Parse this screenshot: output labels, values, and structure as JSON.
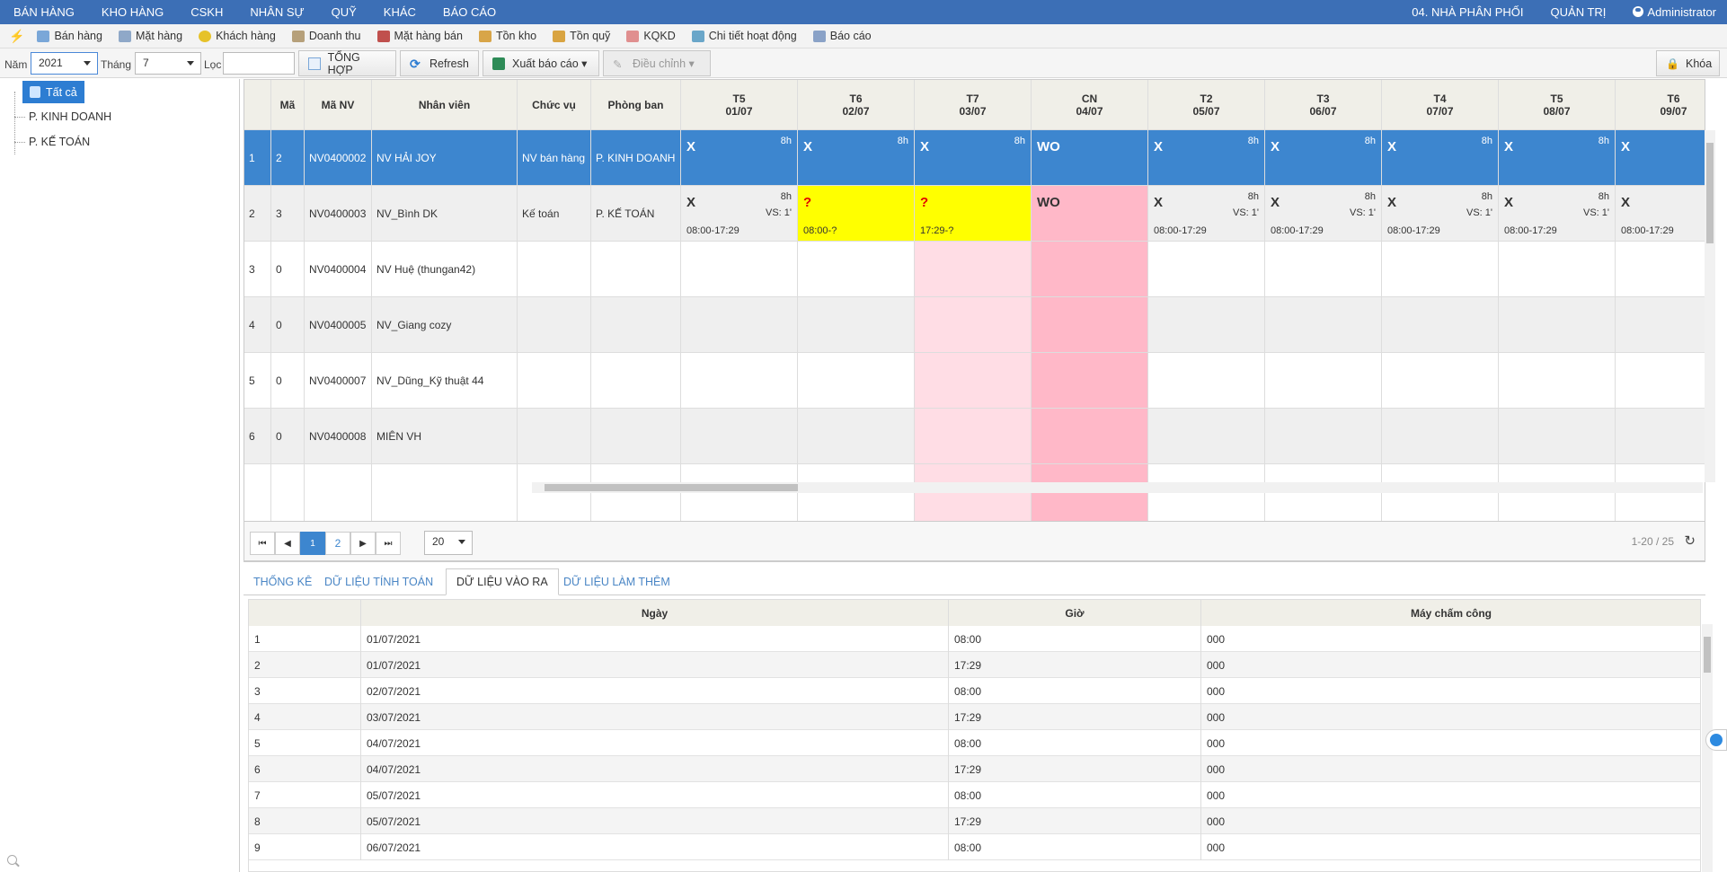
{
  "topbar": {
    "menu": [
      "BÁN HÀNG",
      "KHO HÀNG",
      "CSKH",
      "NHÂN SỰ",
      "QUỸ",
      "KHÁC",
      "BÁO CÁO"
    ],
    "branch": "04. NHÀ PHÂN PHỐI",
    "admin_menu": "QUẢN TRỊ",
    "user": "Administrator"
  },
  "quickbar": [
    {
      "label": "Bán hàng",
      "icon": "cart-icon"
    },
    {
      "label": "Mặt hàng",
      "icon": "box-icon"
    },
    {
      "label": "Khách hàng",
      "icon": "customer-icon"
    },
    {
      "label": "Doanh thu",
      "icon": "revenue-icon"
    },
    {
      "label": "Mặt hàng bán",
      "icon": "chart-icon"
    },
    {
      "label": "Tồn kho",
      "icon": "stock-icon"
    },
    {
      "label": "Tồn quỹ",
      "icon": "money-icon"
    },
    {
      "label": "KQKD",
      "icon": "graph-icon"
    },
    {
      "label": "Chi tiết hoạt động",
      "icon": "activity-icon"
    },
    {
      "label": "Báo cáo",
      "icon": "report-icon"
    }
  ],
  "filter": {
    "year_label": "Năm",
    "year": "2021",
    "month_label": "Tháng",
    "month": "7",
    "filter_label": "Lọc",
    "filter_value": "",
    "summary_btn": "TỔNG HỢP",
    "refresh_btn": "Refresh",
    "export_btn": "Xuất báo cáo ▾",
    "adjust_btn": "Điều chỉnh ▾",
    "lock_btn": "Khóa"
  },
  "tree": {
    "root": "Tất cả",
    "items": [
      "P. KINH DOANH",
      "P. KẾ TOÁN"
    ]
  },
  "grid": {
    "headers": [
      "",
      "Mã",
      "Mã NV",
      "Nhân viên",
      "Chức vụ",
      "Phòng ban"
    ],
    "days": [
      {
        "d": "T5",
        "date": "01/07"
      },
      {
        "d": "T6",
        "date": "02/07"
      },
      {
        "d": "T7",
        "date": "03/07"
      },
      {
        "d": "CN",
        "date": "04/07"
      },
      {
        "d": "T2",
        "date": "05/07"
      },
      {
        "d": "T3",
        "date": "06/07"
      },
      {
        "d": "T4",
        "date": "07/07"
      },
      {
        "d": "T5",
        "date": "08/07"
      },
      {
        "d": "T6",
        "date": "09/07"
      }
    ],
    "rows": [
      {
        "no": "1",
        "code": "2",
        "empid": "NV0400002",
        "name": "NV HẢI JOY",
        "position": "NV bán hàng",
        "dept": "P. KINH DOANH",
        "cells": [
          {
            "m": "X",
            "h": "8h"
          },
          {
            "m": "X",
            "h": "8h"
          },
          {
            "m": "X",
            "h": "8h"
          },
          {
            "m": "WO"
          },
          {
            "m": "X",
            "h": "8h"
          },
          {
            "m": "X",
            "h": "8h"
          },
          {
            "m": "X",
            "h": "8h"
          },
          {
            "m": "X",
            "h": "8h"
          },
          {
            "m": "X"
          }
        ]
      },
      {
        "no": "2",
        "code": "3",
        "empid": "NV0400003",
        "name": "NV_Bình DK",
        "position": "Kế toán",
        "dept": "P. KẾ TOÁN",
        "cells": [
          {
            "m": "X",
            "h": "8h",
            "v": "VS: 1'",
            "t": "08:00-17:29"
          },
          {
            "m": "?",
            "t": "08:00-?"
          },
          {
            "m": "?",
            "t": "17:29-?"
          },
          {
            "m": "WO"
          },
          {
            "m": "X",
            "h": "8h",
            "v": "VS: 1'",
            "t": "08:00-17:29"
          },
          {
            "m": "X",
            "h": "8h",
            "v": "VS: 1'",
            "t": "08:00-17:29"
          },
          {
            "m": "X",
            "h": "8h",
            "v": "VS: 1'",
            "t": "08:00-17:29"
          },
          {
            "m": "X",
            "h": "8h",
            "v": "VS: 1'",
            "t": "08:00-17:29"
          },
          {
            "m": "X",
            "t": "08:00-17:29"
          }
        ]
      },
      {
        "no": "3",
        "code": "0",
        "empid": "NV0400004",
        "name": "NV Huệ (thungan42)",
        "position": "",
        "dept": "",
        "cells": []
      },
      {
        "no": "4",
        "code": "0",
        "empid": "NV0400005",
        "name": "NV_Giang cozy",
        "position": "",
        "dept": "",
        "cells": []
      },
      {
        "no": "5",
        "code": "0",
        "empid": "NV0400007",
        "name": "NV_Dũng_Kỹ thuật 44",
        "position": "",
        "dept": "",
        "cells": []
      },
      {
        "no": "6",
        "code": "0",
        "empid": "NV0400008",
        "name": "MIÊN VH",
        "position": "",
        "dept": "",
        "cells": []
      }
    ]
  },
  "pager": {
    "pages": [
      "1",
      "2"
    ],
    "page_size": "20",
    "range": "1-20 / 25"
  },
  "tabs": [
    "THỐNG KÊ",
    "DỮ LIỆU TÍNH TOÁN",
    "DỮ LIỆU VÀO RA",
    "DỮ LIỆU LÀM THÊM"
  ],
  "io_table": {
    "headers": [
      "",
      "Ngày",
      "Giờ",
      "Máy chấm công"
    ],
    "rows": [
      [
        "1",
        "01/07/2021",
        "08:00",
        "000"
      ],
      [
        "2",
        "01/07/2021",
        "17:29",
        "000"
      ],
      [
        "3",
        "02/07/2021",
        "08:00",
        "000"
      ],
      [
        "4",
        "03/07/2021",
        "17:29",
        "000"
      ],
      [
        "5",
        "04/07/2021",
        "08:00",
        "000"
      ],
      [
        "6",
        "04/07/2021",
        "17:29",
        "000"
      ],
      [
        "7",
        "05/07/2021",
        "08:00",
        "000"
      ],
      [
        "8",
        "05/07/2021",
        "17:29",
        "000"
      ],
      [
        "9",
        "06/07/2021",
        "08:00",
        "000"
      ]
    ]
  },
  "colors": {
    "topbar": "#3c6fb6",
    "selected_row": "#3d86cf",
    "missing": "#ffff00",
    "saturday": "#ffdde5",
    "sunday": "#ffb8c8"
  }
}
